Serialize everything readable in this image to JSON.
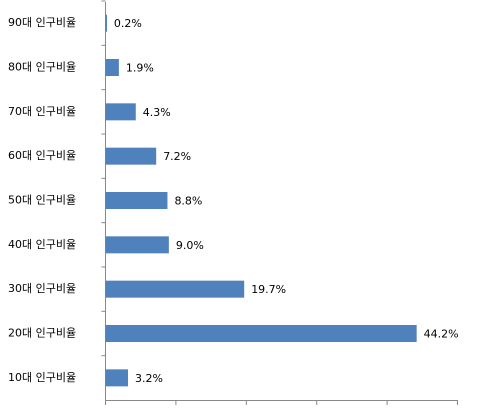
{
  "chart_data": {
    "type": "hbar",
    "categories": [
      "90대 인구비율",
      "80대 인구비율",
      "70대 인구비율",
      "60대 인구비율",
      "50대 인구비율",
      "40대 인구비율",
      "30대 인구비율",
      "20대 인구비율",
      "10대 인구비율"
    ],
    "values": [
      0.2,
      1.9,
      4.3,
      7.2,
      8.8,
      9.0,
      19.7,
      44.2,
      3.2
    ],
    "value_labels": [
      "0.2%",
      "1.9%",
      "4.3%",
      "7.2%",
      "8.8%",
      "9.0%",
      "19.7%",
      "44.2%",
      "3.2%"
    ],
    "color": "#4f81bd",
    "xlim": [
      0,
      50
    ],
    "xticks": [
      0,
      10,
      20,
      30,
      40,
      50
    ],
    "grid": false
  }
}
